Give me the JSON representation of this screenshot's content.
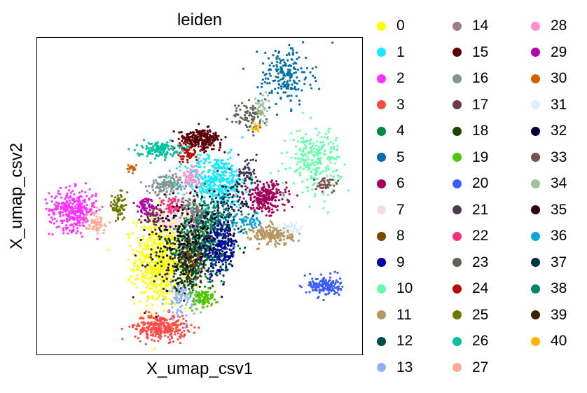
{
  "chart_data": {
    "type": "scatter",
    "title": "leiden",
    "xlabel": "X_umap_csv1",
    "ylabel": "X_umap_csv2",
    "x_ticks": [],
    "y_ticks": [],
    "grid": false,
    "legend_placement": "outside right, 3 columns",
    "xlim": [
      0,
      100
    ],
    "ylim": [
      0,
      100
    ],
    "clusters": [
      {
        "name": "0",
        "color": "#ffff00",
        "center": [
          38,
          30
        ],
        "spread": [
          5,
          9
        ],
        "count": 700
      },
      {
        "name": "1",
        "color": "#1ce6ff",
        "center": [
          55,
          55
        ],
        "spread": [
          6,
          5
        ],
        "count": 420
      },
      {
        "name": "2",
        "color": "#ff34ff",
        "center": [
          11,
          46
        ],
        "spread": [
          4.5,
          4
        ],
        "count": 350
      },
      {
        "name": "3",
        "color": "#ff4a46",
        "center": [
          38,
          9
        ],
        "spread": [
          5,
          2.5
        ],
        "count": 300
      },
      {
        "name": "4",
        "color": "#008941",
        "center": [
          51,
          38
        ],
        "spread": [
          6,
          7
        ],
        "count": 450
      },
      {
        "name": "5",
        "color": "#006fa6",
        "center": [
          76,
          88
        ],
        "spread": [
          5,
          6
        ],
        "count": 200
      },
      {
        "name": "6",
        "color": "#a30059",
        "center": [
          70,
          50
        ],
        "spread": [
          4,
          3
        ],
        "count": 250
      },
      {
        "name": "7",
        "color": "#ffdbe5",
        "center": [
          41,
          43
        ],
        "spread": [
          3,
          3
        ],
        "count": 150
      },
      {
        "name": "8",
        "color": "#7a4900",
        "center": [
          47,
          30
        ],
        "spread": [
          2.5,
          4
        ],
        "count": 150
      },
      {
        "name": "9",
        "color": "#0000a6",
        "center": [
          56,
          35
        ],
        "spread": [
          3.5,
          6
        ],
        "count": 250
      },
      {
        "name": "10",
        "color": "#63ffac",
        "center": [
          85,
          62
        ],
        "spread": [
          5,
          6
        ],
        "count": 250
      },
      {
        "name": "11",
        "color": "#b79762",
        "center": [
          72,
          38
        ],
        "spread": [
          4,
          2
        ],
        "count": 200
      },
      {
        "name": "12",
        "color": "#004d43",
        "center": [
          49,
          32
        ],
        "spread": [
          6,
          7
        ],
        "count": 200
      },
      {
        "name": "13",
        "color": "#8fb0ff",
        "center": [
          44,
          18
        ],
        "spread": [
          3,
          4
        ],
        "count": 100
      },
      {
        "name": "14",
        "color": "#997d87",
        "center": [
          48,
          45
        ],
        "spread": [
          2,
          3
        ],
        "count": 80
      },
      {
        "name": "15",
        "color": "#5a0007",
        "center": [
          50,
          68
        ],
        "spread": [
          4,
          2
        ],
        "count": 250
      },
      {
        "name": "16",
        "color": "#809693",
        "center": [
          40,
          54
        ],
        "spread": [
          3.5,
          2
        ],
        "count": 130
      },
      {
        "name": "17",
        "color": "#6a3a4c",
        "center": [
          36,
          44
        ],
        "spread": [
          2,
          2
        ],
        "count": 60
      },
      {
        "name": "18",
        "color": "#1b4400",
        "center": [
          46,
          26
        ],
        "spread": [
          3,
          4
        ],
        "count": 80
      },
      {
        "name": "19",
        "color": "#4fc601",
        "center": [
          51,
          18
        ],
        "spread": [
          2.5,
          2
        ],
        "count": 100
      },
      {
        "name": "20",
        "color": "#3b5dff",
        "center": [
          88,
          22
        ],
        "spread": [
          3,
          2
        ],
        "count": 150
      },
      {
        "name": "21",
        "color": "#4a3b53",
        "center": [
          64,
          58
        ],
        "spread": [
          2,
          3
        ],
        "count": 60
      },
      {
        "name": "22",
        "color": "#ff2f80",
        "center": [
          42,
          47
        ],
        "spread": [
          2,
          2
        ],
        "count": 60
      },
      {
        "name": "23",
        "color": "#61615a",
        "center": [
          65,
          75
        ],
        "spread": [
          3,
          3
        ],
        "count": 80
      },
      {
        "name": "24",
        "color": "#ba0900",
        "center": [
          46,
          64
        ],
        "spread": [
          2,
          2
        ],
        "count": 60
      },
      {
        "name": "25",
        "color": "#6b7900",
        "center": [
          25,
          47
        ],
        "spread": [
          1.2,
          3
        ],
        "count": 70
      },
      {
        "name": "26",
        "color": "#00c2a0",
        "center": [
          37,
          65
        ],
        "spread": [
          4,
          1.5
        ],
        "count": 130
      },
      {
        "name": "27",
        "color": "#ffaa92",
        "center": [
          18,
          42
        ],
        "spread": [
          2,
          2
        ],
        "count": 60
      },
      {
        "name": "28",
        "color": "#ff90c9",
        "center": [
          47,
          56
        ],
        "spread": [
          2,
          2
        ],
        "count": 60
      },
      {
        "name": "29",
        "color": "#b903aa",
        "center": [
          33,
          47
        ],
        "spread": [
          2,
          2
        ],
        "count": 60
      },
      {
        "name": "30",
        "color": "#d16100",
        "center": [
          29,
          59
        ],
        "spread": [
          1,
          1
        ],
        "count": 20
      },
      {
        "name": "31",
        "color": "#ddefff",
        "center": [
          78,
          40
        ],
        "spread": [
          2,
          1.5
        ],
        "count": 40
      },
      {
        "name": "32",
        "color": "#000035",
        "center": [
          45,
          36
        ],
        "spread": [
          6,
          7
        ],
        "count": 100
      },
      {
        "name": "33",
        "color": "#7b4f4b",
        "center": [
          88,
          54
        ],
        "spread": [
          2.5,
          1.5
        ],
        "count": 40
      },
      {
        "name": "34",
        "color": "#a1c299",
        "center": [
          69,
          78
        ],
        "spread": [
          1.5,
          3
        ],
        "count": 40
      },
      {
        "name": "35",
        "color": "#300018",
        "center": [
          50,
          40
        ],
        "spread": [
          8,
          8
        ],
        "count": 90
      },
      {
        "name": "36",
        "color": "#0aa6d8",
        "center": [
          64,
          42
        ],
        "spread": [
          3,
          2
        ],
        "count": 60
      },
      {
        "name": "37",
        "color": "#013349",
        "center": [
          60,
          50
        ],
        "spread": [
          4,
          4
        ],
        "count": 60
      },
      {
        "name": "38",
        "color": "#00846f",
        "center": [
          55,
          45
        ],
        "spread": [
          4,
          4
        ],
        "count": 60
      },
      {
        "name": "39",
        "color": "#372101",
        "center": [
          40,
          30
        ],
        "spread": [
          6,
          8
        ],
        "count": 60
      },
      {
        "name": "40",
        "color": "#ffb500",
        "center": [
          67,
          72
        ],
        "spread": [
          1,
          1
        ],
        "count": 15
      }
    ]
  }
}
